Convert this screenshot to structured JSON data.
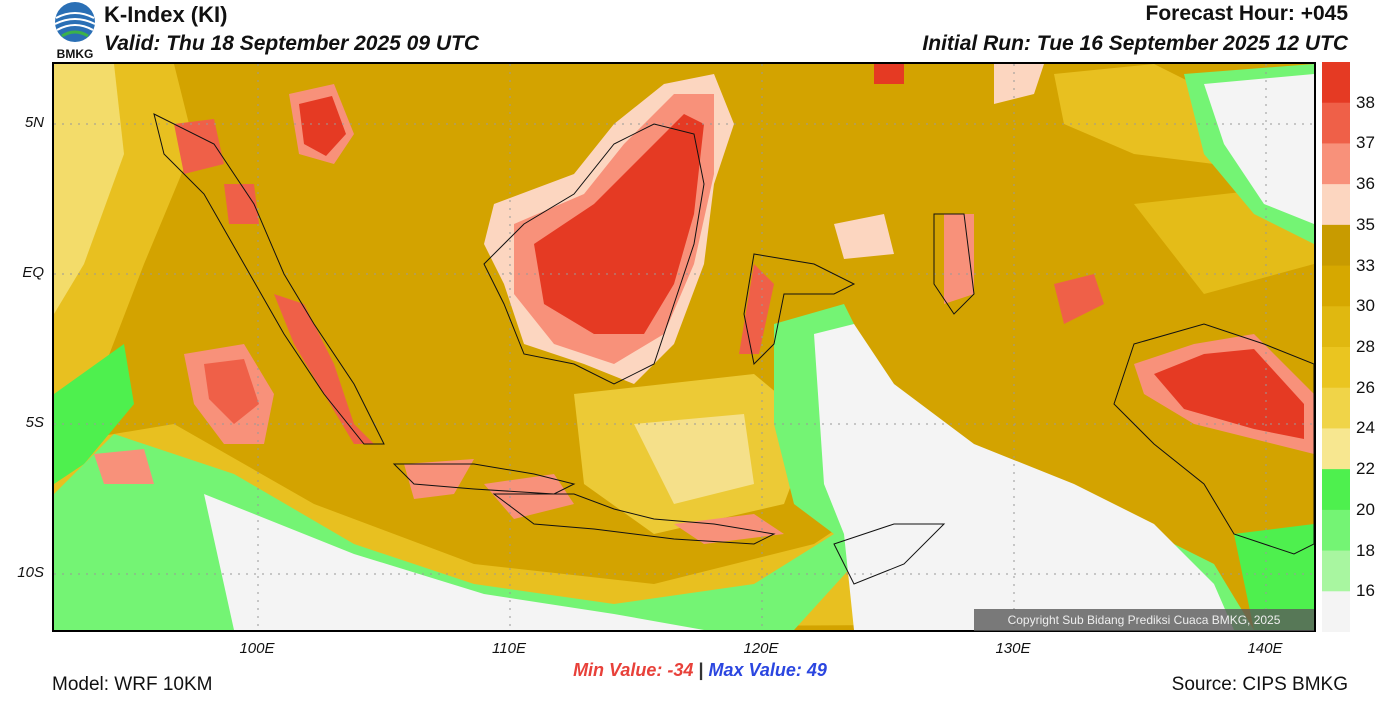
{
  "header": {
    "title": "K-Index (KI)",
    "valid": "Valid: Thu 18 September 2025 09 UTC",
    "forecast_hour": "Forecast Hour: +045",
    "initial_run": "Initial Run: Tue 16 September 2025 12 UTC",
    "logo_text": "BMKG"
  },
  "map": {
    "lat_labels": [
      "5N",
      "EQ",
      "5S",
      "10S"
    ],
    "lon_labels": [
      "100E",
      "110E",
      "120E",
      "130E",
      "140E"
    ],
    "copyright": "Copyright Sub Bidang Prediksi Cuaca BMKG, 2025"
  },
  "colorbar": {
    "labels": [
      "38",
      "37",
      "36",
      "35",
      "33",
      "30",
      "28",
      "26",
      "24",
      "22",
      "20",
      "18",
      "16"
    ],
    "colors": [
      "#e53a23",
      "#ef6048",
      "#f8917a",
      "#fcd6c0",
      "#c89b00",
      "#d6a800",
      "#e0b810",
      "#eac520",
      "#f0d448",
      "#f7e790",
      "#4ef04e",
      "#74f474",
      "#a8f6a0",
      "#f4f4f4"
    ]
  },
  "stats": {
    "min_label": "Min Value:",
    "min_value": "-34",
    "separator": "|",
    "max_label": "Max Value:",
    "max_value": "49"
  },
  "footer": {
    "model": "Model: WRF 10KM",
    "source": "Source: CIPS BMKG"
  }
}
